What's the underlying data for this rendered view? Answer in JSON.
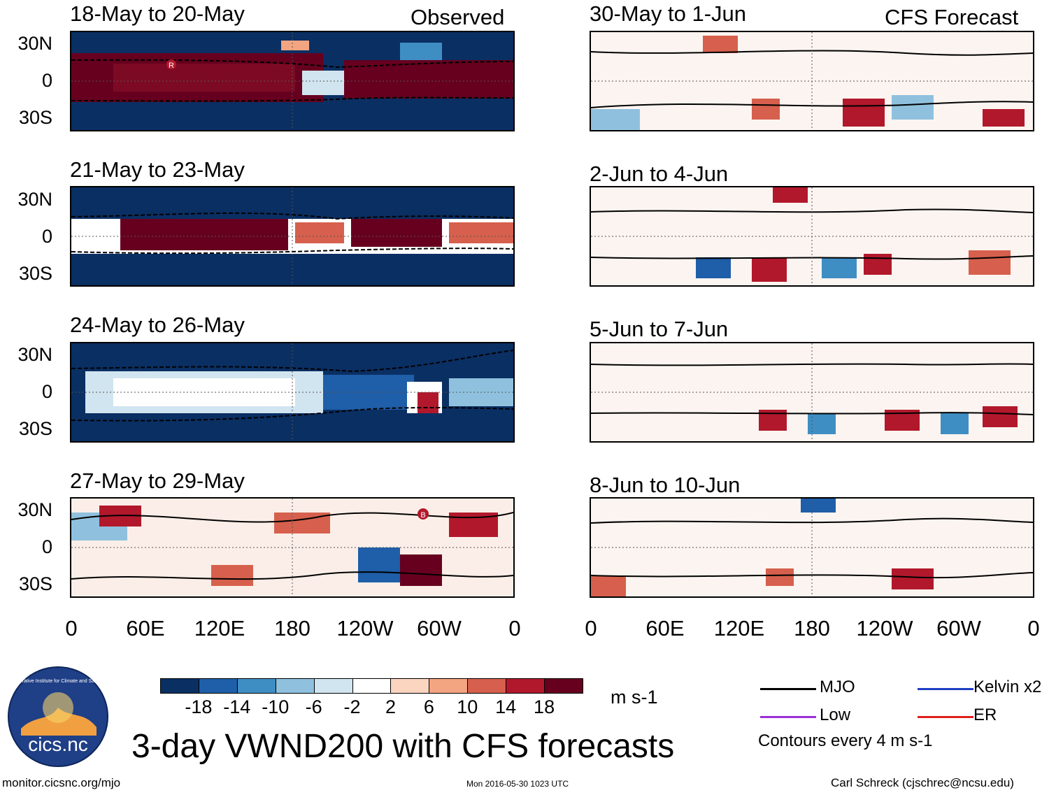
{
  "observed_header": "Observed",
  "forecast_header": "CFS Forecast",
  "observed_panels": [
    {
      "title": "18-May to 20-May"
    },
    {
      "title": "21-May to 23-May"
    },
    {
      "title": "24-May to 26-May"
    },
    {
      "title": "27-May to 29-May"
    }
  ],
  "forecast_panels": [
    {
      "title": "30-May to 1-Jun"
    },
    {
      "title": "2-Jun to 4-Jun"
    },
    {
      "title": "5-Jun to 7-Jun"
    },
    {
      "title": "8-Jun to 10-Jun"
    }
  ],
  "lat_labels": [
    "30N",
    "0",
    "30S"
  ],
  "lon_labels": [
    "0",
    "60E",
    "120E",
    "180",
    "120W",
    "60W",
    "0"
  ],
  "markers": {
    "r": "R",
    "b": "B"
  },
  "colorbar": {
    "colors": [
      "#0a2f63",
      "#1f5ea8",
      "#3f8ec3",
      "#8fc1de",
      "#d1e5f0",
      "#ffffff",
      "#fbd5c0",
      "#f3a582",
      "#d6604d",
      "#b2182b",
      "#67001f"
    ],
    "labels": [
      "-18",
      "-14",
      "-10",
      "-6",
      "-2",
      "2",
      "6",
      "10",
      "14",
      "18"
    ],
    "units": "m s-1"
  },
  "legend": {
    "items": [
      {
        "label": "MJO",
        "color": "#000000"
      },
      {
        "label": "Kelvin x2",
        "color": "#1f3fc4"
      },
      {
        "label": "Low",
        "color": "#9b30d9"
      },
      {
        "label": "ER",
        "color": "#e0201b"
      }
    ],
    "contour_note": "Contours every 4 m s-1"
  },
  "logo": {
    "ring_text": "Cooperative Institute for Climate and Satellites",
    "name": "cics.nc"
  },
  "main_title": "3-day VWND200 with CFS forecasts",
  "footer": {
    "url": "monitor.cicsnc.org/mjo",
    "timestamp": "Mon 2016-05-30 1023 UTC",
    "author": "Carl Schreck (cjschrec@ncsu.edu)"
  }
}
